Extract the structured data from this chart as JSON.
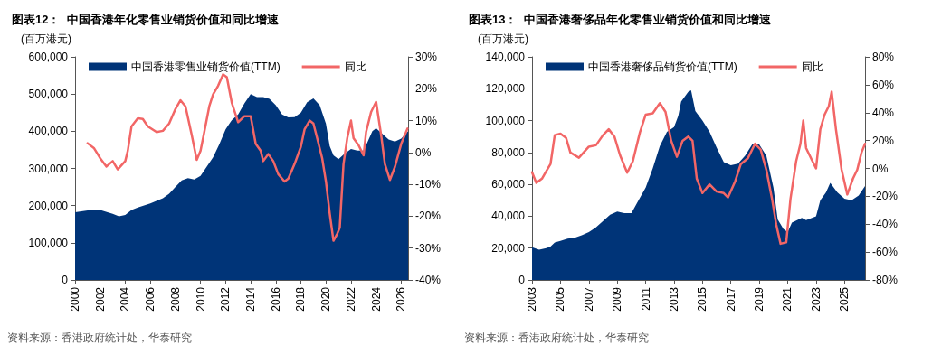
{
  "chart_data": [
    {
      "type": "area",
      "title": "图表12：  中国香港年化零售业销货价值和同比增速",
      "ylabel": "(百万港元)",
      "annotations": [
        "资料来源：香港政府统计处，华泰研究"
      ],
      "legend": "top",
      "marker": "none",
      "grid": false,
      "xlim": [
        2000,
        2026.55
      ],
      "xticks": [
        2000,
        2002,
        2004,
        2006,
        2008,
        2010,
        2012,
        2014,
        2016,
        2018,
        2020,
        2022,
        2024,
        2026
      ],
      "ylim": [
        0,
        600000
      ],
      "yticks": [
        0,
        {
          "value": 100000,
          "label": "100,000"
        },
        {
          "value": 200000,
          "label": "200,000"
        },
        {
          "value": 300000,
          "label": "300,000"
        },
        {
          "value": 400000,
          "label": "400,000"
        },
        {
          "value": 500000,
          "label": "500,000"
        },
        {
          "value": 600000,
          "label": "600,000"
        }
      ],
      "y2lim": [
        -40,
        30
      ],
      "y2ticks": [
        {
          "value": -40,
          "label": "-40%"
        },
        {
          "value": -30,
          "label": "-30%"
        },
        {
          "value": -20,
          "label": "-20%"
        },
        {
          "value": -10,
          "label": "-10%"
        },
        {
          "value": 0,
          "label": "0%"
        },
        {
          "value": 10,
          "label": "10%"
        },
        {
          "value": 20,
          "label": "20%"
        },
        {
          "value": 30,
          "label": "30%"
        }
      ],
      "series": [
        {
          "name": "中国香港零售业销货价值(TTM)",
          "color": "#003478",
          "x": [
            2000,
            2001,
            2002,
            2003,
            2003.5,
            2004,
            2004.5,
            2005,
            2006,
            2007,
            2007.5,
            2008,
            2008.5,
            2009,
            2009.5,
            2010,
            2010.5,
            2011,
            2011.5,
            2012,
            2012.5,
            2013,
            2013.5,
            2014,
            2014.5,
            2015,
            2015.5,
            2016,
            2016.5,
            2017,
            2017.5,
            2018,
            2018.5,
            2019,
            2019.5,
            2020,
            2020.3,
            2020.6,
            2021,
            2021.5,
            2022,
            2022.5,
            2023,
            2023.3,
            2023.7,
            2024,
            2024.5,
            2025,
            2025.5,
            2026,
            2026.55
          ],
          "values": [
            182000,
            187000,
            188000,
            178000,
            171000,
            175000,
            188000,
            195000,
            206000,
            220000,
            232000,
            250000,
            268000,
            274000,
            270000,
            280000,
            305000,
            330000,
            365000,
            405000,
            430000,
            445000,
            475000,
            500000,
            492000,
            492000,
            487000,
            470000,
            445000,
            437000,
            438000,
            450000,
            478000,
            488000,
            470000,
            420000,
            360000,
            335000,
            325000,
            340000,
            352000,
            348000,
            348000,
            370000,
            400000,
            408000,
            393000,
            378000,
            372000,
            380000,
            400000
          ]
        },
        {
          "name": "同比",
          "type": "line",
          "axis": "y2",
          "color": "#f26666",
          "x": [
            2001,
            2001.5,
            2002,
            2002.5,
            2003,
            2003.4,
            2004,
            2004.2,
            2004.5,
            2005,
            2005.4,
            2005.8,
            2006.5,
            2007,
            2007.5,
            2008,
            2008.4,
            2008.8,
            2009.3,
            2009.7,
            2010,
            2010.3,
            2010.7,
            2011,
            2011.4,
            2011.8,
            2012.1,
            2012.5,
            2013,
            2013.5,
            2014,
            2014.4,
            2014.8,
            2015,
            2015.4,
            2015.8,
            2016.2,
            2016.7,
            2017,
            2017.5,
            2018,
            2018.3,
            2018.7,
            2019,
            2019.3,
            2019.7,
            2020,
            2020.3,
            2020.6,
            2020.9,
            2021.1,
            2021.4,
            2021.7,
            2022,
            2022.2,
            2022.6,
            2023,
            2023.2,
            2023.6,
            2024,
            2024.4,
            2024.7,
            2025.1,
            2025.5,
            2026,
            2026.5
          ],
          "values": [
            2.9,
            1.4,
            -1.8,
            -4.4,
            -2.7,
            -5.3,
            -2.7,
            0.5,
            8.2,
            10.7,
            10.5,
            8.2,
            6.4,
            6.8,
            9.1,
            13.6,
            16.4,
            14.5,
            5.5,
            -2.3,
            0.5,
            6.4,
            14.5,
            18.2,
            20.9,
            24.5,
            23.6,
            15.5,
            9.5,
            11.4,
            11.4,
            2.7,
            0.5,
            -2.7,
            -0.5,
            -2.7,
            -6.8,
            -9.1,
            -8.2,
            -3.6,
            1.8,
            7.3,
            10.0,
            9.1,
            4.5,
            -1.8,
            -9.1,
            -19.1,
            -27.7,
            -25.5,
            -23.6,
            -3.6,
            4.5,
            10.0,
            4.5,
            2.3,
            -0.9,
            6.4,
            12.7,
            15.9,
            5.5,
            -3.6,
            -8.6,
            -4.5,
            2.7,
            7.5
          ]
        }
      ]
    },
    {
      "type": "area",
      "title": "图表13：  中国香港奢侈品年化零售业销货价值和同比增速",
      "ylabel": "(百万港元)",
      "annotations": [
        "资料来源：香港政府统计处，华泰研究"
      ],
      "legend": "top",
      "marker": "none",
      "grid": false,
      "xlim": [
        2003,
        2026.45
      ],
      "xticks": [
        2003,
        2005,
        2007,
        2009,
        2011,
        2013,
        2015,
        2017,
        2019,
        2021,
        2023,
        2025
      ],
      "ylim": [
        0,
        140000
      ],
      "yticks": [
        0,
        {
          "value": 20000,
          "label": "20,000"
        },
        {
          "value": 40000,
          "label": "40,000"
        },
        {
          "value": 60000,
          "label": "60,000"
        },
        {
          "value": 80000,
          "label": "80,000"
        },
        {
          "value": 100000,
          "label": "100,000"
        },
        {
          "value": 120000,
          "label": "120,000"
        },
        {
          "value": 140000,
          "label": "140,000"
        }
      ],
      "y2lim": [
        -80,
        80
      ],
      "y2ticks": [
        {
          "value": -80,
          "label": "-80%"
        },
        {
          "value": -60,
          "label": "-60%"
        },
        {
          "value": -40,
          "label": "-40%"
        },
        {
          "value": -20,
          "label": "-20%"
        },
        {
          "value": 0,
          "label": "0%"
        },
        {
          "value": 20,
          "label": "20%"
        },
        {
          "value": 40,
          "label": "40%"
        },
        {
          "value": 60,
          "label": "60%"
        },
        {
          "value": 80,
          "label": "80%"
        }
      ],
      "series": [
        {
          "name": "中国香港奢侈品销货价值(TTM)",
          "color": "#003478",
          "x": [
            2003,
            2003.5,
            2004,
            2004.3,
            2004.6,
            2005,
            2005.5,
            2006,
            2006.5,
            2007,
            2007.5,
            2008,
            2008.5,
            2009,
            2009.5,
            2010,
            2010.5,
            2011,
            2011.5,
            2012,
            2012.5,
            2013,
            2013.3,
            2013.5,
            2014,
            2014.2,
            2014.5,
            2015,
            2015.5,
            2016,
            2016.5,
            2017,
            2017.5,
            2018,
            2018.5,
            2019,
            2019.5,
            2020,
            2020.3,
            2020.7,
            2021,
            2021.3,
            2022,
            2022.3,
            2023,
            2023.3,
            2023.7,
            2024,
            2024.5,
            2025,
            2025.5,
            2026,
            2026.45
          ],
          "values": [
            20500,
            19000,
            20000,
            21000,
            23500,
            24500,
            26000,
            26500,
            28000,
            30000,
            33000,
            37000,
            41000,
            43000,
            42000,
            42000,
            50000,
            58000,
            70000,
            84000,
            93000,
            96000,
            103000,
            112000,
            118000,
            119000,
            106000,
            100000,
            93000,
            83000,
            74000,
            72000,
            73000,
            78000,
            85000,
            85000,
            78000,
            58000,
            38000,
            32000,
            30000,
            36000,
            39000,
            37500,
            40000,
            50000,
            55000,
            61000,
            55000,
            51000,
            50000,
            53000,
            59000
          ]
        },
        {
          "name": "同比",
          "type": "line",
          "axis": "y2",
          "color": "#f26666",
          "x": [
            2003,
            2003.3,
            2003.7,
            2004,
            2004.3,
            2004.6,
            2005,
            2005.4,
            2005.7,
            2006.3,
            2007,
            2007.5,
            2008,
            2008.4,
            2008.8,
            2009.2,
            2009.7,
            2010.1,
            2010.6,
            2011,
            2011.5,
            2012,
            2012.4,
            2012.8,
            2013.2,
            2013.6,
            2014,
            2014.3,
            2014.6,
            2015,
            2015.5,
            2016,
            2016.5,
            2016.8,
            2017.3,
            2017.7,
            2018.2,
            2018.7,
            2019.1,
            2019.5,
            2019.9,
            2020.2,
            2020.5,
            2020.9,
            2021.2,
            2021.6,
            2021.9,
            2022.1,
            2022.3,
            2022.7,
            2023,
            2023.3,
            2023.6,
            2023.9,
            2024.1,
            2024.4,
            2024.8,
            2025.2,
            2025.6,
            2025.9,
            2026.2,
            2026.45
          ],
          "values": [
            -2.7,
            -10.4,
            -7.3,
            -2.1,
            3.1,
            23.9,
            24.9,
            21.8,
            11.4,
            7.7,
            15.6,
            16.6,
            23.9,
            28.1,
            22.9,
            9.4,
            -3.1,
            5.2,
            26,
            38.5,
            39.5,
            46.8,
            40.5,
            19.8,
            8.3,
            19.8,
            22.9,
            19.8,
            -7.3,
            -17.7,
            -11.4,
            -16.6,
            -17.7,
            -20.8,
            -9.4,
            3.1,
            7.3,
            17.7,
            13.5,
            -1,
            -21.8,
            -40.5,
            -54,
            -53,
            -21.8,
            5.2,
            17.7,
            34.3,
            14.6,
            6.2,
            0,
            28.1,
            38.5,
            44.7,
            55,
            28.1,
            -1,
            -18.7,
            -7.3,
            -1,
            11.4,
            17.7
          ]
        }
      ]
    }
  ]
}
